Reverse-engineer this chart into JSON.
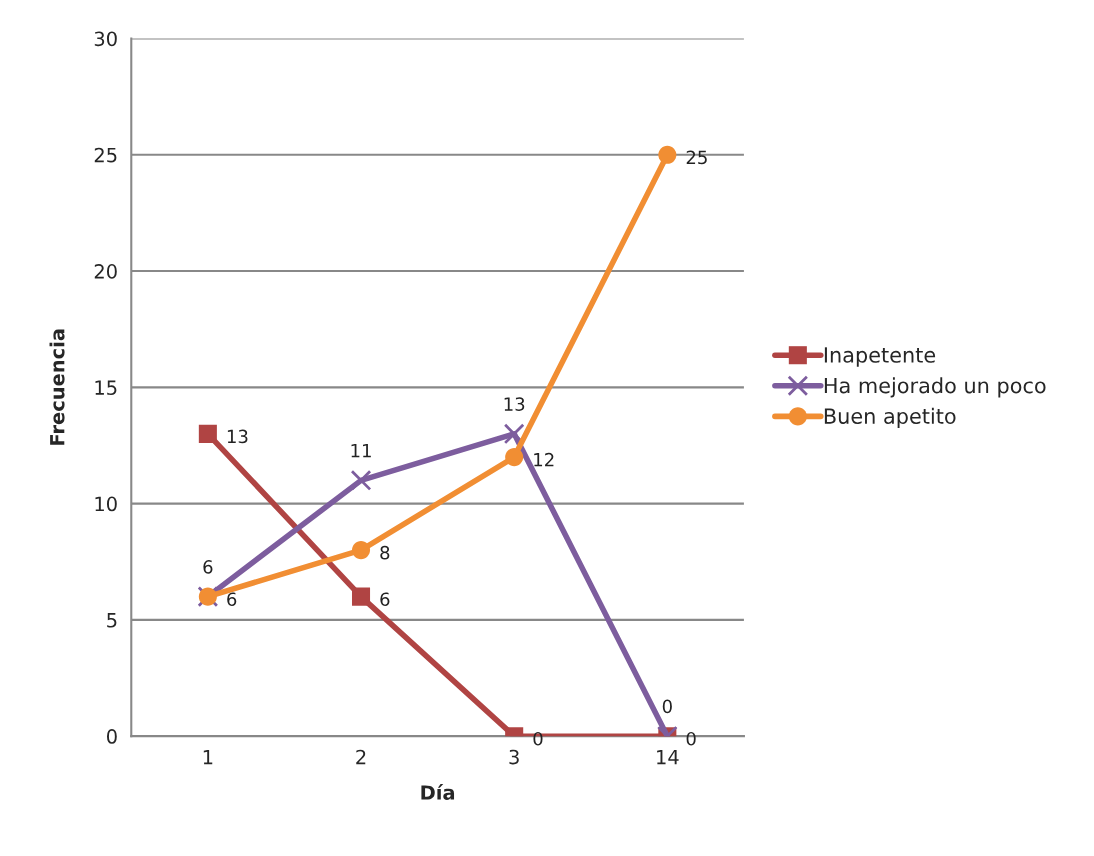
{
  "chart_data": {
    "type": "line",
    "xlabel": "Día",
    "ylabel": "Frecuencia",
    "categories": [
      "1",
      "2",
      "3",
      "14"
    ],
    "series": [
      {
        "name": "Inapetente",
        "color": "#b04443",
        "marker": "square",
        "values": [
          13,
          6,
          0,
          0
        ]
      },
      {
        "name": "Ha mejorado un poco",
        "color": "#7d5d9e",
        "marker": "cross",
        "values": [
          6,
          11,
          13,
          0
        ]
      },
      {
        "name": "Buen apetito",
        "color": "#f18e33",
        "marker": "circle",
        "values": [
          6,
          8,
          12,
          25
        ]
      }
    ],
    "ylim": [
      0,
      30
    ],
    "yticks": [
      0,
      5,
      10,
      15,
      20,
      25,
      30
    ],
    "grid": "y",
    "legend": "right",
    "data_labels": true
  }
}
